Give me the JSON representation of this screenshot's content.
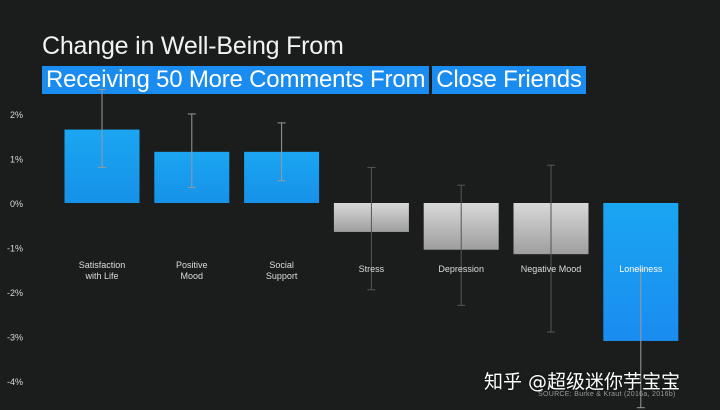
{
  "header": {
    "title_line1": "Change in Well-Being From",
    "title_line2_part1": "Receiving 50 More Comments From",
    "title_line2_part2": "Close Friends"
  },
  "watermark": "知乎 @超级迷你芋宝宝",
  "source": "SOURCE: Burke & Kraut (2016a, 2016b)",
  "colors": {
    "background": "#1b1d1d",
    "highlight": "#1a8cf0",
    "positive_bar": "#1aa6f2",
    "negative_bar": "#c4c4c4",
    "loneliness_bar": "#1a8cf0"
  },
  "chart_data": {
    "type": "bar",
    "title": "Change in Well-Being From Receiving 50 More Comments From Close Friends",
    "categories": [
      "Satisfaction\nwith Life",
      "Positive\nMood",
      "Social\nSupport",
      "Stress",
      "Depression",
      "Negative Mood",
      "Loneliness"
    ],
    "values": [
      1.65,
      1.15,
      1.15,
      -0.65,
      -1.05,
      -1.15,
      -3.1
    ],
    "error_low": [
      0.8,
      0.35,
      0.5,
      -1.95,
      -2.3,
      -2.9,
      -4.6
    ],
    "error_high": [
      2.55,
      2.0,
      1.8,
      0.8,
      0.4,
      0.85,
      -1.5
    ],
    "ylim": [
      -4,
      2
    ],
    "yticks": [
      "2%",
      "1%",
      "0%",
      "-1%",
      "-2%",
      "-3%",
      "-4%"
    ],
    "ytick_values": [
      2,
      1,
      0,
      -1,
      -2,
      -3,
      -4
    ],
    "xlabel": "",
    "ylabel": "",
    "grid": false
  }
}
